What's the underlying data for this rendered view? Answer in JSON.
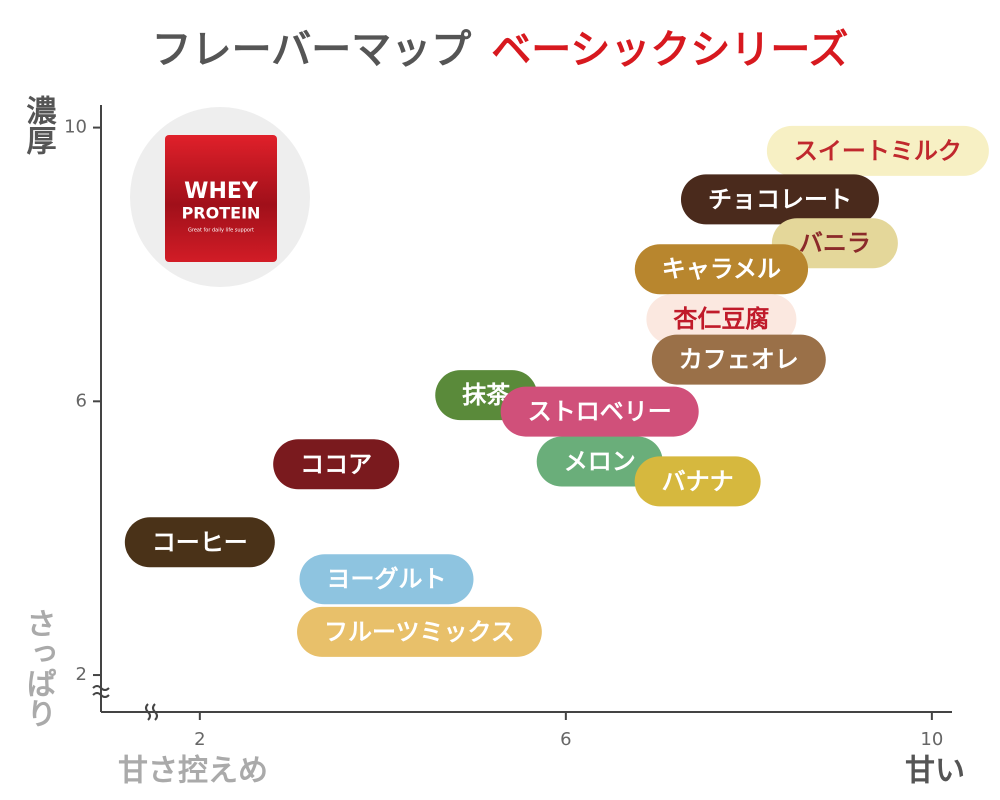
{
  "chart_data": {
    "type": "scatter",
    "title": "フレーバーマップ",
    "subtitle": "ベーシックシリーズ",
    "ylabel": {
      "high": "濃厚",
      "low": "さっぱり"
    },
    "xlabel": {
      "low": "甘さ控えめ",
      "high": "甘い"
    },
    "xlim": [
      0.92,
      10.22
    ],
    "ylim": [
      1.46,
      10.33
    ],
    "xticks": [
      2,
      6,
      10
    ],
    "yticks": [
      2,
      6,
      10
    ],
    "product_image": {
      "lines": [
        "WHEY",
        "PROTEIN"
      ],
      "tagline": "Great for daily life support"
    },
    "points": [
      {
        "name": "スイートミルク",
        "color": "#f7f0c4",
        "text_color": "#c0282d",
        "x": 9.41,
        "y": 9.66
      },
      {
        "name": "チョコレート",
        "color": "#4a2a1c",
        "text_color": "#ffffff",
        "x": 8.34,
        "y": 8.95
      },
      {
        "name": "バニラ",
        "color": "#e4d79a",
        "text_color": "#8b2a2a",
        "x": 8.94,
        "y": 8.31
      },
      {
        "name": "キャラメル",
        "color": "#b8862e",
        "text_color": "#ffffff",
        "x": 7.7,
        "y": 7.93
      },
      {
        "name": "杏仁豆腐",
        "color": "#fbe8e0",
        "text_color": "#c01a2a",
        "x": 7.7,
        "y": 7.2
      },
      {
        "name": "カフェオレ",
        "color": "#9a7048",
        "text_color": "#ffffff",
        "x": 7.89,
        "y": 6.61
      },
      {
        "name": "抹茶",
        "color": "#5a8a3a",
        "text_color": "#ffffff",
        "x": 5.13,
        "y": 6.09
      },
      {
        "name": "メロン",
        "color": "#6aae7a",
        "text_color": "#ffffff",
        "x": 6.37,
        "y": 5.12
      },
      {
        "name": "ストロベリー",
        "color": "#d0507a",
        "text_color": "#ffffff",
        "x": 6.37,
        "y": 5.85
      },
      {
        "name": "バナナ",
        "color": "#d6b83e",
        "text_color": "#ffffff",
        "x": 7.44,
        "y": 4.83
      },
      {
        "name": "ココア",
        "color": "#7a1a1e",
        "text_color": "#ffffff",
        "x": 3.49,
        "y": 5.08
      },
      {
        "name": "コーヒー",
        "color": "#4a3218",
        "text_color": "#ffffff",
        "x": 2.0,
        "y": 3.94
      },
      {
        "name": "ヨーグルト",
        "color": "#8ec4e0",
        "text_color": "#ffffff",
        "x": 4.04,
        "y": 3.4
      },
      {
        "name": "フルーツミックス",
        "color": "#e8c06a",
        "text_color": "#ffffff",
        "x": 4.4,
        "y": 2.63
      }
    ]
  }
}
